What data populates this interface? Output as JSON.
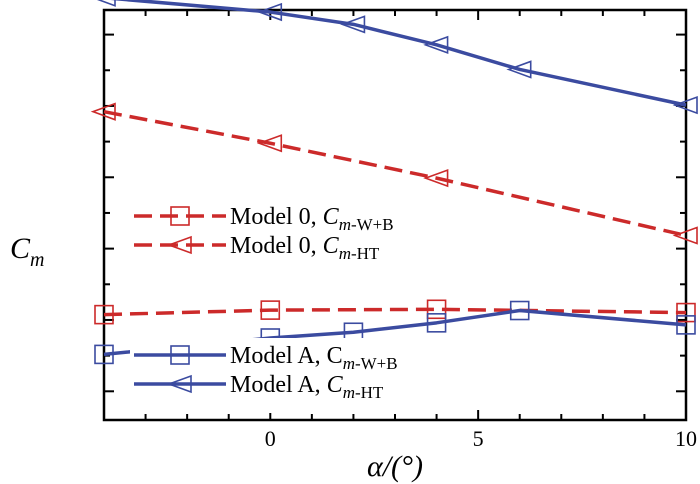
{
  "chart_data": {
    "type": "line",
    "xlabel": "α/(°)",
    "ylabel": "C",
    "ylabel_sub": "m",
    "xlim": [
      -4,
      10
    ],
    "ylim": [
      0,
      1
    ],
    "x_ticks": [
      0,
      5,
      10
    ],
    "x_tick_labels": [
      "0",
      "5",
      "10"
    ],
    "y_major_tick_count": 6,
    "series": [
      {
        "name": "Model 0, Cm-W+B",
        "legend_main": "Model 0, ",
        "legend_sym": "C",
        "legend_symsub": "m",
        "legend_sub": "-W+B",
        "color": "#cc2a2a",
        "dash": true,
        "marker": "square",
        "x": [
          -4,
          0,
          4,
          10
        ],
        "values": [
          0.257,
          0.268,
          0.27,
          0.262
        ]
      },
      {
        "name": "Model 0, Cm-HT",
        "legend_main": "Model 0, ",
        "legend_sym": "C",
        "legend_symsub": "m",
        "legend_sub": "-HT",
        "color": "#cc2a2a",
        "dash": true,
        "marker": "triangle-left",
        "x": [
          -4,
          0,
          4,
          10
        ],
        "values": [
          0.752,
          0.675,
          0.59,
          0.45
        ]
      },
      {
        "name": "Model A, Cm-W+B",
        "legend_main": "Model A, C",
        "legend_sym": "",
        "legend_symsub": "m",
        "legend_sub": "-W+B",
        "color": "#3b4ba0",
        "dash": false,
        "marker": "square",
        "x": [
          -4,
          0,
          2,
          4,
          6,
          10
        ],
        "values": [
          0.16,
          0.2,
          0.214,
          0.237,
          0.267,
          0.232
        ]
      },
      {
        "name": "Model A, Cm-HT",
        "legend_main": "Model A, ",
        "legend_sym": "C",
        "legend_symsub": "m",
        "legend_sub": "-HT",
        "color": "#3b4ba0",
        "dash": false,
        "marker": "triangle-left",
        "x": [
          -4,
          0,
          2,
          4,
          6,
          10
        ],
        "values": [
          1.03,
          0.995,
          0.965,
          0.915,
          0.855,
          0.768
        ]
      }
    ]
  }
}
